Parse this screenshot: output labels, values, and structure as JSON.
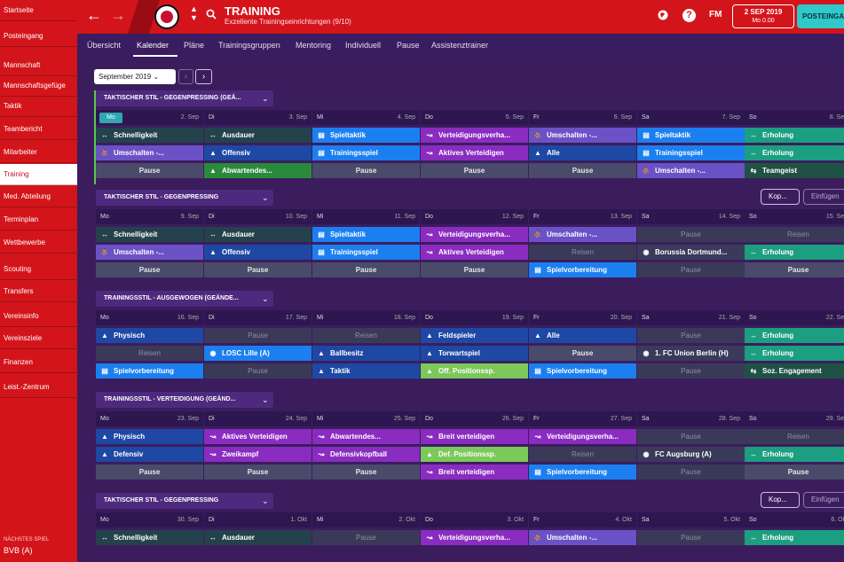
{
  "sidebar": {
    "items": [
      "Startseite",
      "Posteingang",
      "Mannschaft",
      "Mannschaftsgefüge",
      "Taktik",
      "Teambericht",
      "Mitarbeiter",
      "Training",
      "Med. Abteilung",
      "Terminplan",
      "Wettbewerbe",
      "Scouting",
      "Transfers",
      "Vereinsinfo",
      "Vereinsziele",
      "Finanzen",
      "Leist.-Zentrum"
    ],
    "active": "Training",
    "next_match_label": "NÄCHSTES SPIEL",
    "next_match_value": "BVB (A)"
  },
  "header": {
    "title": "TRAINING",
    "subtitle": "Exzellente Trainingseinrichtungen (9/10)",
    "date": "2 SEP 2019",
    "time": "Mo 0.00",
    "inbox_label": "POSTEINGA",
    "fm_label": "FM",
    "help_label": "?"
  },
  "tabs": [
    "Übersicht",
    "Kalender",
    "Pläne",
    "Trainingsgruppen",
    "Mentoring",
    "Individuell",
    "Pause",
    "Assistenztrainer"
  ],
  "active_tab": "Kalender",
  "month_select": "September 2019",
  "icons": {
    "prev": "chevron-left-icon",
    "next": "chevron-right-icon",
    "search": "search-icon",
    "globe": "globe-icon",
    "help": "help-icon"
  },
  "copy_label": "Kop...",
  "paste_label": "Einfügen",
  "days": [
    "Mo",
    "Di",
    "Mi",
    "Do",
    "Fr",
    "Sa",
    "So"
  ],
  "weeks": [
    {
      "header": "TAKTISCHER STIL - GEGENPRESSING (GEÄ...",
      "dates": [
        "2. Sep",
        "3. Sep",
        "4. Sep",
        "5. Sep",
        "6. Sep",
        "7. Sep",
        "8. Sep"
      ],
      "today": 0,
      "show_buttons": false,
      "rows": [
        [
          [
            "↔",
            "Schnelligkeit",
            "darkteal"
          ],
          [
            "↔",
            "Ausdauer",
            "darkteal"
          ],
          [
            "▤",
            "Spieltaktik",
            "blue"
          ],
          [
            "↝",
            "Verteidigungsverha...",
            "purple"
          ],
          [
            "⛹",
            "Umschalten -...",
            "lavender"
          ],
          [
            "▤",
            "Spieltaktik",
            "blue"
          ],
          [
            "↔",
            "Erholung",
            "teal"
          ]
        ],
        [
          [
            "⛹",
            "Umschalten -...",
            "lavender"
          ],
          [
            "▲",
            "Offensiv",
            "navy"
          ],
          [
            "▤",
            "Trainingsspiel",
            "blue"
          ],
          [
            "↝",
            "Aktives Verteidigen",
            "purple"
          ],
          [
            "▲",
            "Alle",
            "navy"
          ],
          [
            "▤",
            "Trainingsspiel",
            "blue"
          ],
          [
            "↔",
            "Erholung",
            "teal"
          ]
        ],
        [
          [
            "",
            "Pause",
            "grey"
          ],
          [
            "▲",
            "Abwartendes...",
            "green"
          ],
          [
            "",
            "Pause",
            "grey"
          ],
          [
            "",
            "Pause",
            "grey"
          ],
          [
            "",
            "Pause",
            "grey"
          ],
          [
            "⛹",
            "Umschalten -...",
            "lavender"
          ],
          [
            "⇆",
            "Teamgeist",
            "dkgreen"
          ]
        ]
      ]
    },
    {
      "header": "TAKTISCHER STIL - GEGENPRESSING",
      "dates": [
        "9. Sep",
        "10. Sep",
        "11. Sep",
        "12. Sep",
        "13. Sep",
        "14. Sep",
        "15. Sep"
      ],
      "today": -1,
      "show_buttons": true,
      "rows": [
        [
          [
            "↔",
            "Schnelligkeit",
            "darkteal"
          ],
          [
            "↔",
            "Ausdauer",
            "darkteal"
          ],
          [
            "▤",
            "Spieltaktik",
            "blue"
          ],
          [
            "↝",
            "Verteidigungsverha...",
            "purple"
          ],
          [
            "⛹",
            "Umschalten -...",
            "lavender"
          ],
          [
            "",
            "Pause",
            "greydim"
          ],
          [
            "",
            "Reisen",
            "greydim"
          ]
        ],
        [
          [
            "⛹",
            "Umschalten -...",
            "lavender"
          ],
          [
            "▲",
            "Offensiv",
            "navy"
          ],
          [
            "▤",
            "Trainingsspiel",
            "blue"
          ],
          [
            "↝",
            "Aktives Verteidigen",
            "purple"
          ],
          [
            "",
            "Reisen",
            "greydim"
          ],
          [
            "◉",
            "Borussia Dortmund...",
            "maroon"
          ],
          [
            "↔",
            "Erholung",
            "teal"
          ]
        ],
        [
          [
            "",
            "Pause",
            "grey"
          ],
          [
            "",
            "Pause",
            "grey"
          ],
          [
            "",
            "Pause",
            "grey"
          ],
          [
            "",
            "Pause",
            "grey"
          ],
          [
            "▤",
            "Spielvorbereitung",
            "blue"
          ],
          [
            "",
            "Pause",
            "greydim"
          ],
          [
            "",
            "Pause",
            "grey"
          ]
        ]
      ]
    },
    {
      "header": "TRAININGSSTIL - AUSGEWOGEN (GEÄNDE...",
      "dates": [
        "16. Sep",
        "17. Sep",
        "18. Sep",
        "19. Sep",
        "20. Sep",
        "21. Sep",
        "22. Sep"
      ],
      "today": -1,
      "show_buttons": false,
      "rows": [
        [
          [
            "▲",
            "Physisch",
            "navy"
          ],
          [
            "",
            "Pause",
            "greydim"
          ],
          [
            "",
            "Reisen",
            "greydim"
          ],
          [
            "▲",
            "Feldspieler",
            "navy"
          ],
          [
            "▲",
            "Alle",
            "navy"
          ],
          [
            "",
            "Pause",
            "greydim"
          ],
          [
            "↔",
            "Erholung",
            "teal"
          ]
        ],
        [
          [
            "",
            "Reisen",
            "greydim"
          ],
          [
            "◉",
            "LOSC Lille (A)",
            "blue"
          ],
          [
            "▲",
            "Ballbesitz",
            "navy"
          ],
          [
            "▲",
            "Torwartspiel",
            "navy"
          ],
          [
            "",
            "Pause",
            "grey"
          ],
          [
            "◉",
            "1. FC Union Berlin (H)",
            "maroon"
          ],
          [
            "↔",
            "Erholung",
            "teal"
          ]
        ],
        [
          [
            "▤",
            "Spielvorbereitung",
            "blue"
          ],
          [
            "",
            "Pause",
            "greydim"
          ],
          [
            "▲",
            "Taktik",
            "navy"
          ],
          [
            "▲",
            "Off. Positionssp.",
            "lime"
          ],
          [
            "▤",
            "Spielvorbereitung",
            "blue"
          ],
          [
            "",
            "Pause",
            "greydim"
          ],
          [
            "⇆",
            "Soz. Engagement",
            "dkgreen"
          ]
        ]
      ]
    },
    {
      "header": "TRAININGSSTIL - VERTEIDIGUNG (GEÄND...",
      "dates": [
        "23. Sep",
        "24. Sep",
        "25. Sep",
        "26. Sep",
        "27. Sep",
        "28. Sep",
        "29. Sep"
      ],
      "today": -1,
      "show_buttons": false,
      "rows": [
        [
          [
            "▲",
            "Physisch",
            "navy"
          ],
          [
            "↝",
            "Aktives Verteidigen",
            "purple"
          ],
          [
            "↝",
            "Abwartendes...",
            "purple"
          ],
          [
            "↝",
            "Breit verteidigen",
            "purple"
          ],
          [
            "↝",
            "Verteidigungsverha...",
            "purple"
          ],
          [
            "",
            "Pause",
            "greydim"
          ],
          [
            "",
            "Reisen",
            "greydim"
          ]
        ],
        [
          [
            "▲",
            "Defensiv",
            "navy"
          ],
          [
            "↝",
            "Zweikampf",
            "purple"
          ],
          [
            "↝",
            "Defensivkopfball",
            "purple"
          ],
          [
            "▲",
            "Def. Positionssp.",
            "lime"
          ],
          [
            "",
            "Reisen",
            "greydim"
          ],
          [
            "◉",
            "FC Augsburg (A)",
            "maroon"
          ],
          [
            "↔",
            "Erholung",
            "teal"
          ]
        ],
        [
          [
            "",
            "Pause",
            "grey"
          ],
          [
            "",
            "Pause",
            "grey"
          ],
          [
            "",
            "Pause",
            "grey"
          ],
          [
            "↝",
            "Breit verteidigen",
            "purple"
          ],
          [
            "▤",
            "Spielvorbereitung",
            "blue"
          ],
          [
            "",
            "Pause",
            "greydim"
          ],
          [
            "",
            "Pause",
            "grey"
          ]
        ]
      ]
    },
    {
      "header": "TAKTISCHER STIL - GEGENPRESSING",
      "dates": [
        "30. Sep",
        "1. Okt",
        "2. Okt",
        "3. Okt",
        "4. Okt",
        "5. Okt",
        "6. Okt"
      ],
      "today": -1,
      "show_buttons": true,
      "rows": [
        [
          [
            "↔",
            "Schnelligkeit",
            "darkteal"
          ],
          [
            "↔",
            "Ausdauer",
            "darkteal"
          ],
          [
            "",
            "Pause",
            "greydim"
          ],
          [
            "↝",
            "Verteidigungsverha...",
            "purple"
          ],
          [
            "⛹",
            "Umschalten -...",
            "lavender"
          ],
          [
            "",
            "Pause",
            "greydim"
          ],
          [
            "↔",
            "Erholung",
            "teal"
          ]
        ]
      ]
    }
  ]
}
